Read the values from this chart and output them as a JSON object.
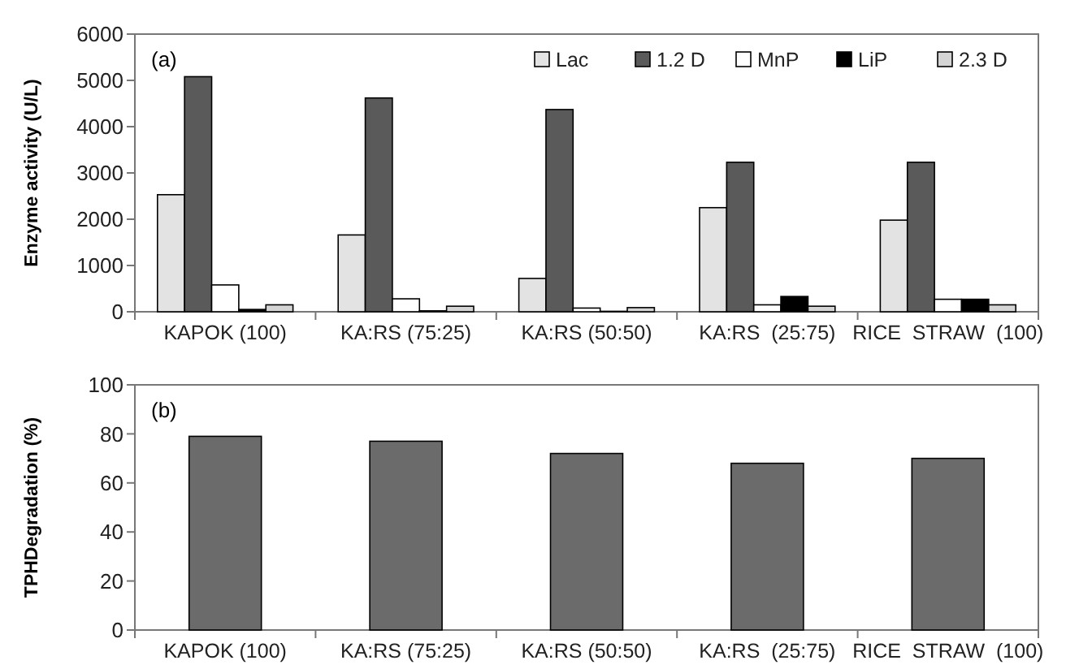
{
  "chart_data": [
    {
      "type": "bar",
      "ylabel": "Enzyme activity (U/L)",
      "annotations": [
        "(a)"
      ],
      "categories": [
        "KAPOK (100)",
        "KA:RS (75:25)",
        "KA:RS (50:50)",
        "KA:RS  (25:75)",
        "RICE  STRAW  (100)"
      ],
      "series": [
        {
          "name": "Lac",
          "color": "#e3e3e3",
          "values": [
            2530,
            1660,
            720,
            2250,
            1980
          ]
        },
        {
          "name": "1.2 D",
          "color": "#5a5a5a",
          "values": [
            5080,
            4620,
            4370,
            3230,
            3230
          ]
        },
        {
          "name": "MnP",
          "color": "#ffffff",
          "values": [
            580,
            280,
            80,
            150,
            270
          ]
        },
        {
          "name": "LiP",
          "color": "#000000",
          "values": [
            50,
            20,
            10,
            330,
            270
          ]
        },
        {
          "name": "2.3 D",
          "color": "#d4d4d4",
          "values": [
            150,
            120,
            90,
            120,
            150
          ]
        }
      ],
      "ylim": [
        0,
        6000
      ],
      "yticks": [
        0,
        1000,
        2000,
        3000,
        4000,
        5000,
        6000
      ],
      "legend": "top right"
    },
    {
      "type": "bar",
      "ylabel": "TPHDegradation (%)",
      "annotations": [
        "(b)"
      ],
      "categories": [
        "KAPOK (100)",
        "KA:RS (75:25)",
        "KA:RS (50:50)",
        "KA:RS  (25:75)",
        "RICE  STRAW  (100)"
      ],
      "series": [
        {
          "color": "#6b6b6b",
          "values": [
            79,
            77,
            72,
            68,
            70
          ]
        }
      ],
      "ylim": [
        0,
        100
      ],
      "yticks": [
        0,
        20,
        40,
        60,
        80,
        100
      ]
    }
  ]
}
